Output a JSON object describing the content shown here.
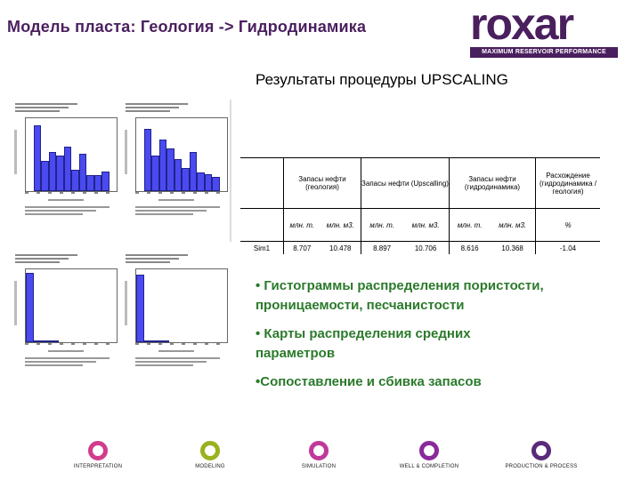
{
  "header": {
    "title": "Модель пласта: Геология -> Гидродинамика",
    "logo_word": "roxar",
    "logo_tagline": "MAXIMUM RESERVOIR PERFORMANCE",
    "brand_color": "#4a1f5e"
  },
  "subtitle": "Результаты процедуры UPSCALING",
  "histograms": [
    {
      "heights": [
        0,
        0.92,
        0.42,
        0.55,
        0.5,
        0.62,
        0.3,
        0.52,
        0.22,
        0.22,
        0.28,
        0
      ]
    },
    {
      "heights": [
        0,
        0.88,
        0.5,
        0.72,
        0.6,
        0.45,
        0.33,
        0.55,
        0.26,
        0.24,
        0.2,
        0
      ]
    },
    {
      "heights": [
        0.97,
        0.02,
        0.01,
        0.01,
        0,
        0,
        0,
        0,
        0,
        0,
        0
      ]
    },
    {
      "heights": [
        0.95,
        0.03,
        0.01,
        0.01,
        0,
        0,
        0,
        0,
        0,
        0,
        0
      ]
    }
  ],
  "table": {
    "headers": [
      "",
      "Запасы нефти (геология)",
      "Запасы нефти (Upscalling)",
      "Запасы нефти (гидродинамика)",
      "Расхождение (гидродинамика / геология)"
    ],
    "units": [
      "",
      "млн. т.",
      "млн. м3.",
      "млн. т.",
      "млн. м3.",
      "млн. т.",
      "млн. м3.",
      "%"
    ],
    "row": [
      "Sim1",
      "8.707",
      "10.478",
      "8.897",
      "10.706",
      "8.616",
      "10.368",
      "-1.04"
    ]
  },
  "bullets": [
    "• Гистограммы распределения пористости, проницаемости, песчанистости",
    "• Карты распределения средних параметров",
    "•Сопоставление и сбивка запасов"
  ],
  "workflow": [
    {
      "label": "INTERPRETATION",
      "color": "#d23c8c"
    },
    {
      "label": "MODELING",
      "color": "#9ab21e"
    },
    {
      "label": "SIMULATION",
      "color": "#c0399a"
    },
    {
      "label": "WELL & COMPLETION",
      "color": "#8a2a9a"
    },
    {
      "label": "PRODUCTION & PROCESS",
      "color": "#5a2a7a"
    }
  ]
}
